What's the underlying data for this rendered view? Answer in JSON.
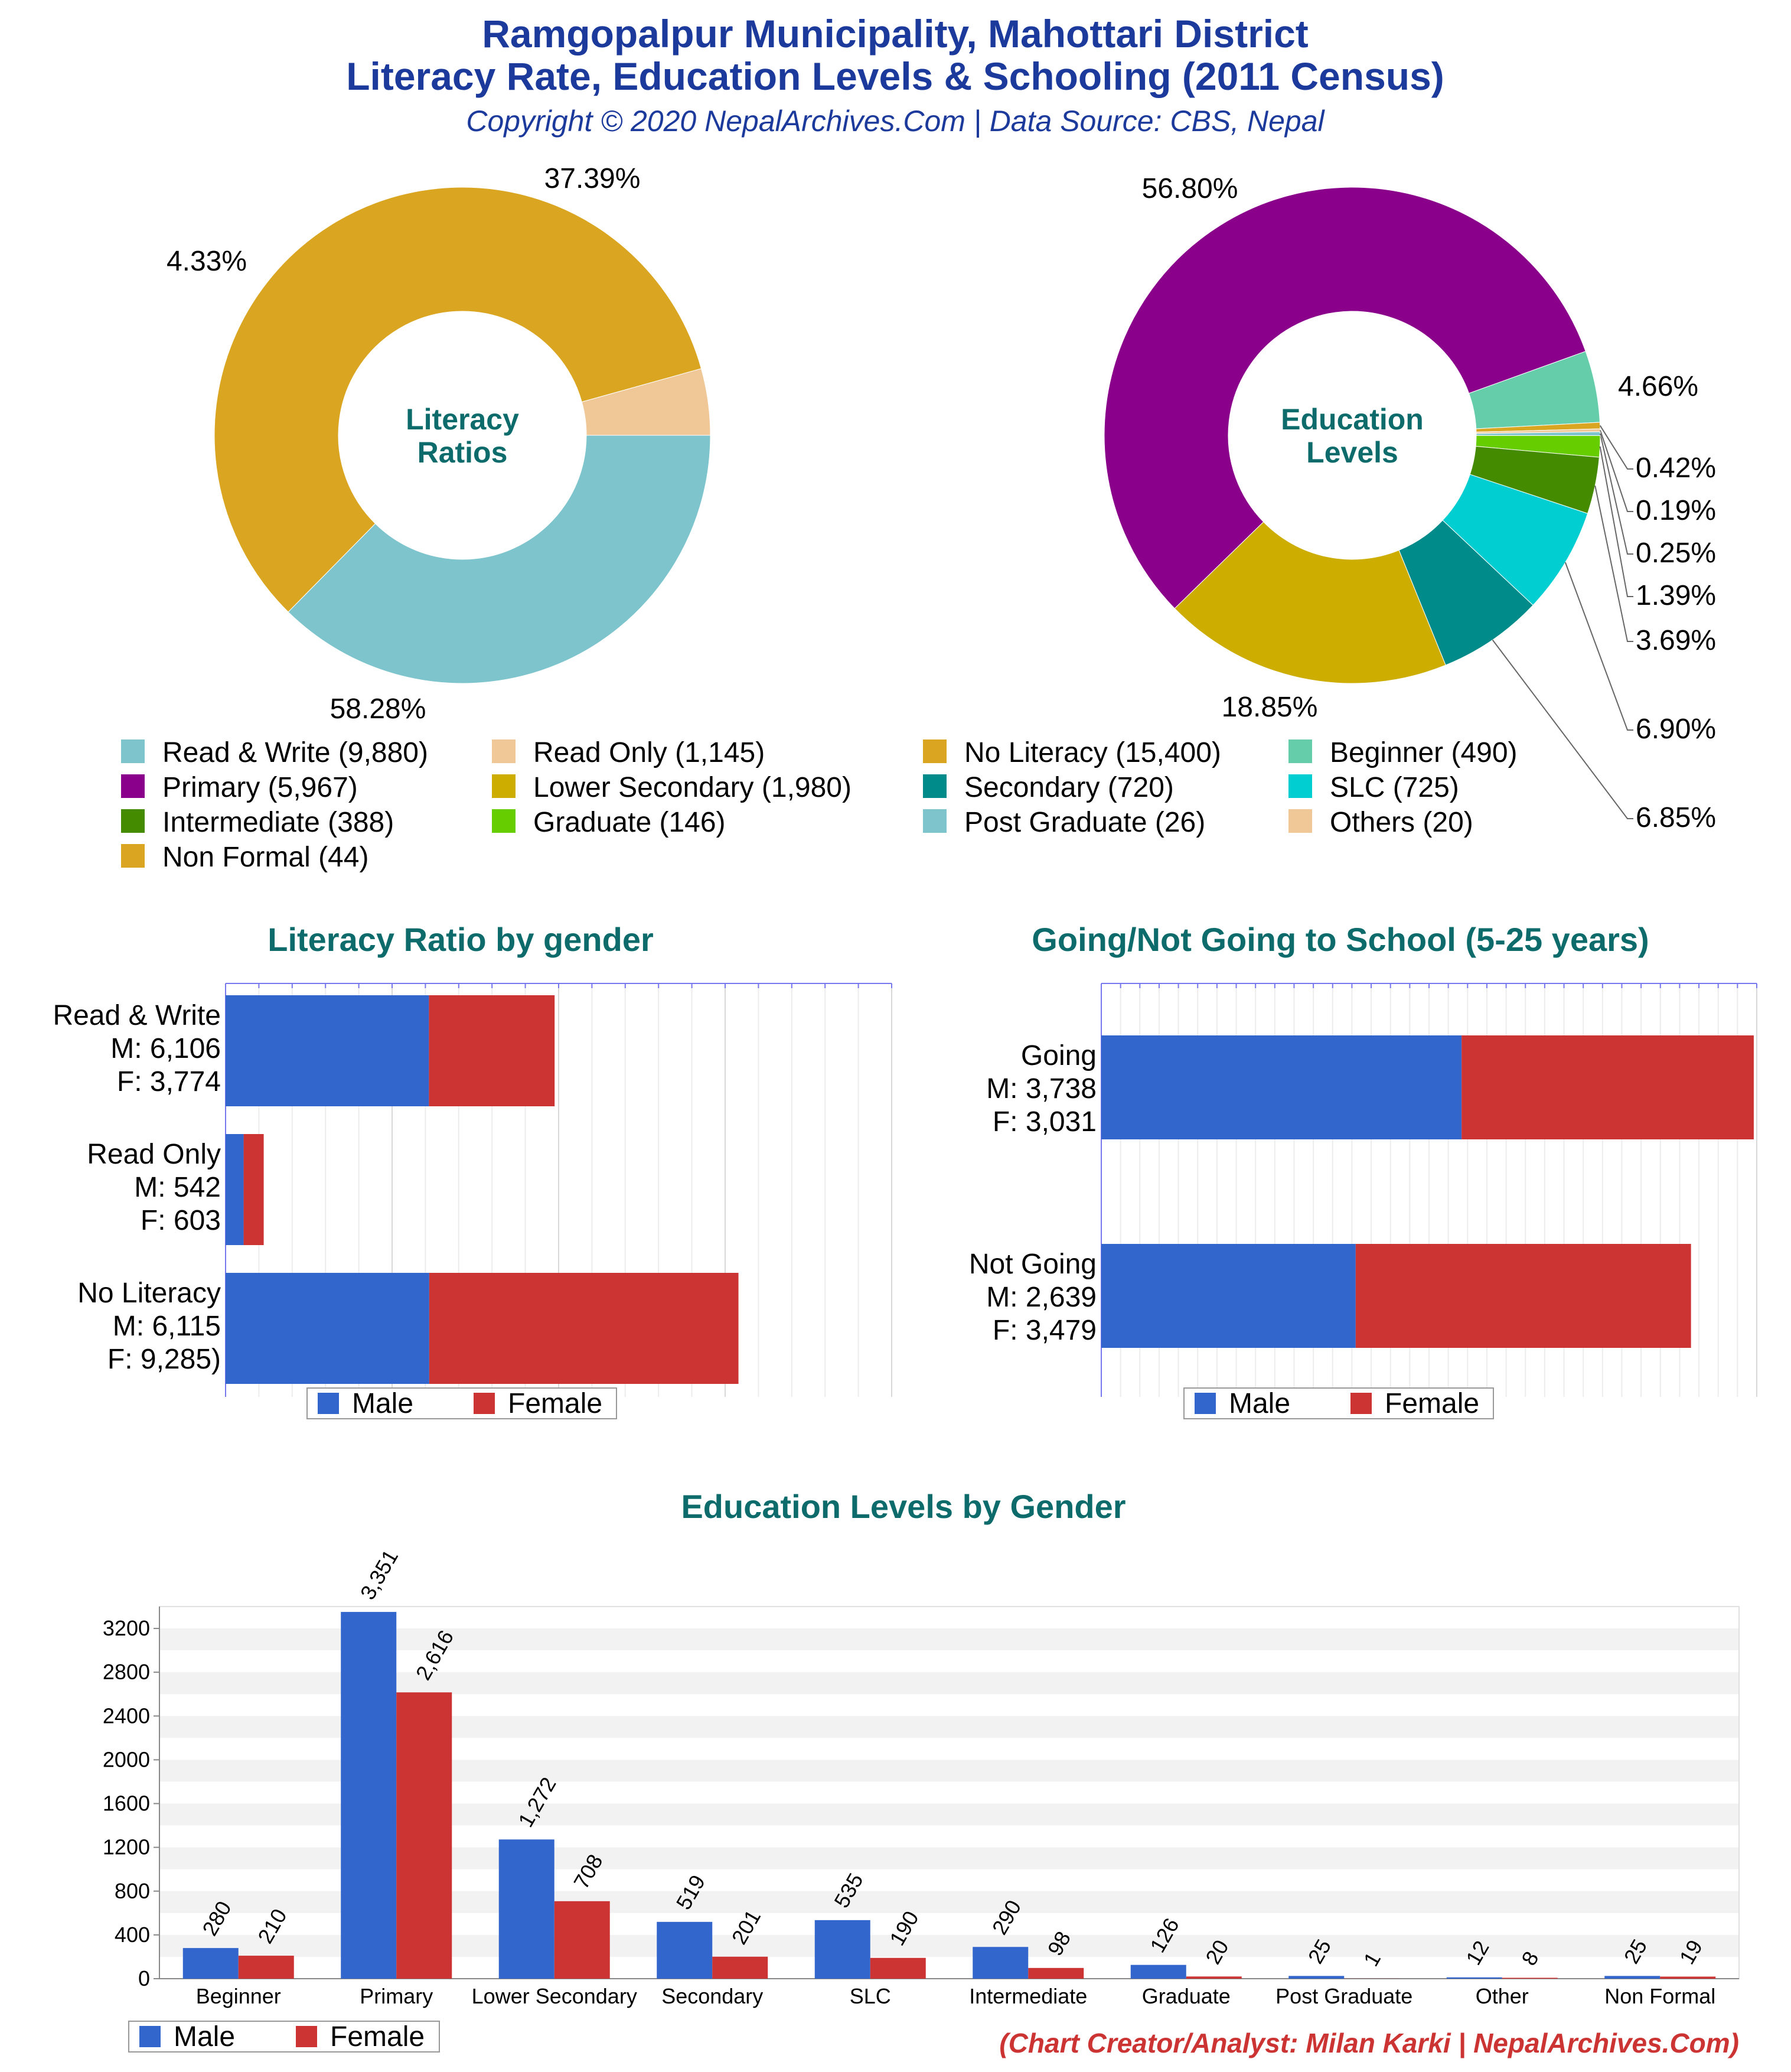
{
  "header": {
    "title_line1": "Ramgopalpur Municipality, Mahottari District",
    "title_line2": "Literacy Rate, Education Levels & Schooling (2011 Census)",
    "copyright": "Copyright © 2020 NepalArchives.Com | Data Source: CBS, Nepal"
  },
  "colors": {
    "male": "#3366cc",
    "female": "#cc3333",
    "title": "#1c3a9b",
    "section_title": "#0e6b6b"
  },
  "legend_items": [
    {
      "label": "Read & Write (9,880)",
      "color": "#7dc4cc"
    },
    {
      "label": "Read Only (1,145)",
      "color": "#f0c898"
    },
    {
      "label": "No Literacy (15,400)",
      "color": "#daa520"
    },
    {
      "label": "Beginner (490)",
      "color": "#66cdaa"
    },
    {
      "label": "Primary (5,967)",
      "color": "#8b008b"
    },
    {
      "label": "Lower Secondary (1,980)",
      "color": "#ccad00"
    },
    {
      "label": "Secondary (720)",
      "color": "#008b8b"
    },
    {
      "label": "SLC (725)",
      "color": "#00ced1"
    },
    {
      "label": "Intermediate (388)",
      "color": "#458b00"
    },
    {
      "label": "Graduate (146)",
      "color": "#66cd00"
    },
    {
      "label": "Post Graduate (26)",
      "color": "#7dc4cc"
    },
    {
      "label": "Others (20)",
      "color": "#f0c898"
    },
    {
      "label": "Non Formal (44)",
      "color": "#daa520"
    }
  ],
  "gender_legend": {
    "male": "Male",
    "female": "Female"
  },
  "credit": "(Chart Creator/Analyst: Milan Karki | NepalArchives.Com)",
  "chart_data": [
    {
      "type": "pie",
      "center_label": [
        "Literacy",
        "Ratios"
      ],
      "slices": [
        {
          "label": "Read & Write",
          "value": 9880,
          "percent_label": "37.39%",
          "color": "#7dc4cc"
        },
        {
          "label": "No Literacy",
          "value": 15400,
          "percent_label": "58.28%",
          "color": "#daa520"
        },
        {
          "label": "Read Only",
          "value": 1145,
          "percent_label": "4.33%",
          "color": "#f0c898"
        }
      ]
    },
    {
      "type": "pie",
      "center_label": [
        "Education",
        "Levels"
      ],
      "slices": [
        {
          "label": "Beginner",
          "value": 490,
          "percent_label": "4.66%",
          "color": "#66cdaa"
        },
        {
          "label": "Non Formal",
          "value": 44,
          "percent_label": "0.42%",
          "color": "#daa520"
        },
        {
          "label": "Others",
          "value": 20,
          "percent_label": "0.19%",
          "color": "#f0c898"
        },
        {
          "label": "Post Graduate",
          "value": 26,
          "percent_label": "0.25%",
          "color": "#7dc4cc"
        },
        {
          "label": "Graduate",
          "value": 146,
          "percent_label": "1.39%",
          "color": "#66cd00"
        },
        {
          "label": "Intermediate",
          "value": 388,
          "percent_label": "3.69%",
          "color": "#458b00"
        },
        {
          "label": "SLC",
          "value": 725,
          "percent_label": "6.90%",
          "color": "#00ced1"
        },
        {
          "label": "Secondary",
          "value": 720,
          "percent_label": "6.85%",
          "color": "#008b8b"
        },
        {
          "label": "Lower Secondary",
          "value": 1980,
          "percent_label": "18.85%",
          "color": "#ccad00"
        },
        {
          "label": "Primary",
          "value": 5967,
          "percent_label": "56.80%",
          "color": "#8b008b"
        }
      ]
    },
    {
      "type": "bar",
      "title": "Literacy Ratio by gender",
      "orientation": "horizontal-stacked",
      "xlim": [
        0,
        20000
      ],
      "categories": [
        {
          "lines": [
            "Read & Write",
            "M: 6,106",
            "F: 3,774"
          ],
          "male": 6106,
          "female": 3774
        },
        {
          "lines": [
            "Read Only",
            "M: 542",
            "F: 603"
          ],
          "male": 542,
          "female": 603
        },
        {
          "lines": [
            "No Literacy",
            "M: 6,115",
            "F: 9,285)"
          ],
          "male": 6115,
          "female": 9285
        }
      ]
    },
    {
      "type": "bar",
      "title": "Going/Not Going to School (5-25 years)",
      "orientation": "horizontal-stacked",
      "xlim": [
        0,
        6800
      ],
      "categories": [
        {
          "lines": [
            "Going",
            "M: 3,738",
            "F: 3,031"
          ],
          "male": 3738,
          "female": 3031
        },
        {
          "lines": [
            "Not Going",
            "M: 2,639",
            "F: 3,479"
          ],
          "male": 2639,
          "female": 3479
        }
      ]
    },
    {
      "type": "bar",
      "title": "Education Levels by Gender",
      "ylim": [
        0,
        3400
      ],
      "yticks": [
        "0",
        "400",
        "800",
        "1200",
        "1600",
        "2000",
        "2400",
        "2800",
        "3200"
      ],
      "categories": [
        "Beginner",
        "Primary",
        "Lower Secondary",
        "Secondary",
        "SLC",
        "Intermediate",
        "Graduate",
        "Post Graduate",
        "Other",
        "Non Formal"
      ],
      "series": [
        {
          "name": "Male",
          "values": [
            280,
            3351,
            1272,
            519,
            535,
            290,
            126,
            25,
            12,
            25
          ],
          "labels": [
            "280",
            "3,351",
            "1,272",
            "519",
            "535",
            "290",
            "126",
            "25",
            "12",
            "25"
          ]
        },
        {
          "name": "Female",
          "values": [
            210,
            2616,
            708,
            201,
            190,
            98,
            20,
            1,
            8,
            19
          ],
          "labels": [
            "210",
            "2,616",
            "708",
            "201",
            "190",
            "98",
            "20",
            "1",
            "8",
            "19"
          ]
        }
      ]
    }
  ]
}
